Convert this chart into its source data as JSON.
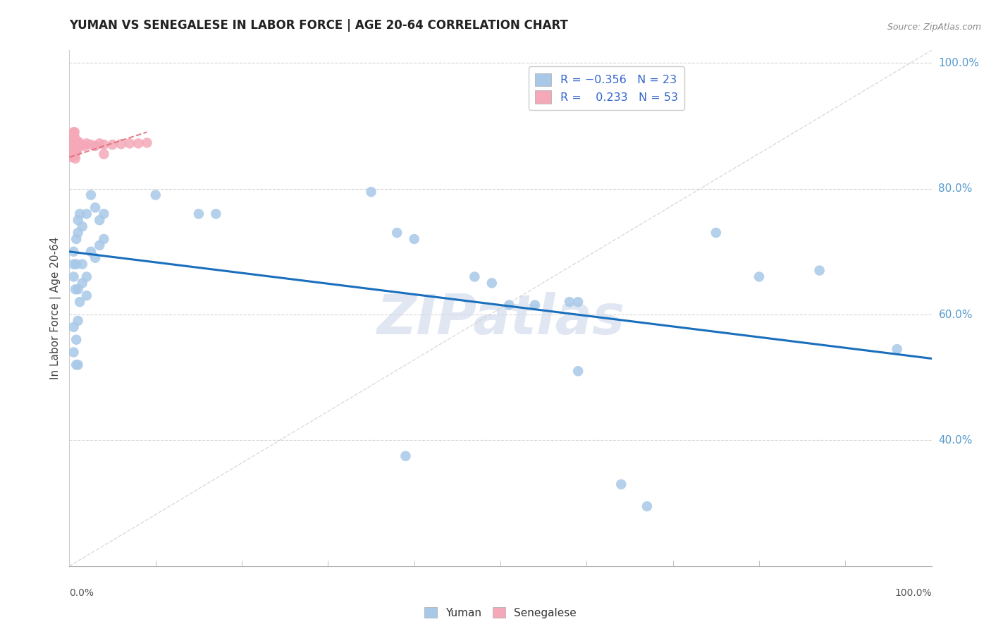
{
  "title": "YUMAN VS SENEGALESE IN LABOR FORCE | AGE 20-64 CORRELATION CHART",
  "source": "Source: ZipAtlas.com",
  "ylabel": "In Labor Force | Age 20-64",
  "watermark": "ZIPatlas",
  "blue_color": "#a8c8e8",
  "pink_color": "#f4a8b8",
  "line_blue": "#1a6fbd",
  "line_pink": "#e06878",
  "diag_color": "#cccccc",
  "grid_color": "#cccccc",
  "yuman_points": [
    [
      0.005,
      0.7
    ],
    [
      0.005,
      0.68
    ],
    [
      0.008,
      0.72
    ],
    [
      0.01,
      0.75
    ],
    [
      0.01,
      0.73
    ],
    [
      0.012,
      0.76
    ],
    [
      0.015,
      0.74
    ],
    [
      0.02,
      0.76
    ],
    [
      0.025,
      0.79
    ],
    [
      0.03,
      0.77
    ],
    [
      0.035,
      0.75
    ],
    [
      0.04,
      0.76
    ],
    [
      0.005,
      0.66
    ],
    [
      0.007,
      0.64
    ],
    [
      0.01,
      0.64
    ],
    [
      0.012,
      0.62
    ],
    [
      0.008,
      0.68
    ],
    [
      0.015,
      0.68
    ],
    [
      0.02,
      0.66
    ],
    [
      0.025,
      0.7
    ],
    [
      0.03,
      0.69
    ],
    [
      0.035,
      0.71
    ],
    [
      0.04,
      0.72
    ],
    [
      0.005,
      0.58
    ],
    [
      0.008,
      0.56
    ],
    [
      0.01,
      0.59
    ],
    [
      0.005,
      0.54
    ],
    [
      0.008,
      0.52
    ],
    [
      0.01,
      0.52
    ],
    [
      0.015,
      0.65
    ],
    [
      0.02,
      0.63
    ],
    [
      0.1,
      0.79
    ],
    [
      0.15,
      0.76
    ],
    [
      0.17,
      0.76
    ],
    [
      0.35,
      0.795
    ],
    [
      0.38,
      0.73
    ],
    [
      0.4,
      0.72
    ],
    [
      0.47,
      0.66
    ],
    [
      0.49,
      0.65
    ],
    [
      0.51,
      0.615
    ],
    [
      0.54,
      0.615
    ],
    [
      0.58,
      0.62
    ],
    [
      0.59,
      0.62
    ],
    [
      0.75,
      0.73
    ],
    [
      0.8,
      0.66
    ],
    [
      0.87,
      0.67
    ],
    [
      0.96,
      0.545
    ],
    [
      0.39,
      0.375
    ],
    [
      0.59,
      0.51
    ],
    [
      0.64,
      0.33
    ],
    [
      0.67,
      0.295
    ]
  ],
  "senegalese_points": [
    [
      0.003,
      0.88
    ],
    [
      0.004,
      0.885
    ],
    [
      0.005,
      0.89
    ],
    [
      0.003,
      0.875
    ],
    [
      0.004,
      0.878
    ],
    [
      0.005,
      0.882
    ],
    [
      0.003,
      0.87
    ],
    [
      0.004,
      0.873
    ],
    [
      0.005,
      0.875
    ],
    [
      0.003,
      0.865
    ],
    [
      0.004,
      0.868
    ],
    [
      0.005,
      0.87
    ],
    [
      0.003,
      0.86
    ],
    [
      0.004,
      0.862
    ],
    [
      0.005,
      0.865
    ],
    [
      0.003,
      0.855
    ],
    [
      0.004,
      0.857
    ],
    [
      0.005,
      0.86
    ],
    [
      0.003,
      0.85
    ],
    [
      0.004,
      0.852
    ],
    [
      0.005,
      0.855
    ],
    [
      0.006,
      0.89
    ],
    [
      0.006,
      0.882
    ],
    [
      0.006,
      0.875
    ],
    [
      0.006,
      0.868
    ],
    [
      0.006,
      0.86
    ],
    [
      0.006,
      0.852
    ],
    [
      0.007,
      0.878
    ],
    [
      0.007,
      0.87
    ],
    [
      0.007,
      0.863
    ],
    [
      0.007,
      0.855
    ],
    [
      0.007,
      0.848
    ],
    [
      0.008,
      0.875
    ],
    [
      0.008,
      0.868
    ],
    [
      0.008,
      0.86
    ],
    [
      0.009,
      0.87
    ],
    [
      0.009,
      0.862
    ],
    [
      0.01,
      0.875
    ],
    [
      0.01,
      0.867
    ],
    [
      0.012,
      0.872
    ],
    [
      0.015,
      0.87
    ],
    [
      0.018,
      0.868
    ],
    [
      0.02,
      0.872
    ],
    [
      0.025,
      0.87
    ],
    [
      0.03,
      0.868
    ],
    [
      0.035,
      0.872
    ],
    [
      0.04,
      0.87
    ],
    [
      0.05,
      0.87
    ],
    [
      0.06,
      0.871
    ],
    [
      0.07,
      0.872
    ],
    [
      0.08,
      0.872
    ],
    [
      0.09,
      0.873
    ],
    [
      0.04,
      0.855
    ]
  ],
  "xlim": [
    0,
    1.0
  ],
  "ylim": [
    0.2,
    1.02
  ],
  "yticks": [
    0.4,
    0.6,
    0.8,
    1.0
  ],
  "background": "#ffffff"
}
